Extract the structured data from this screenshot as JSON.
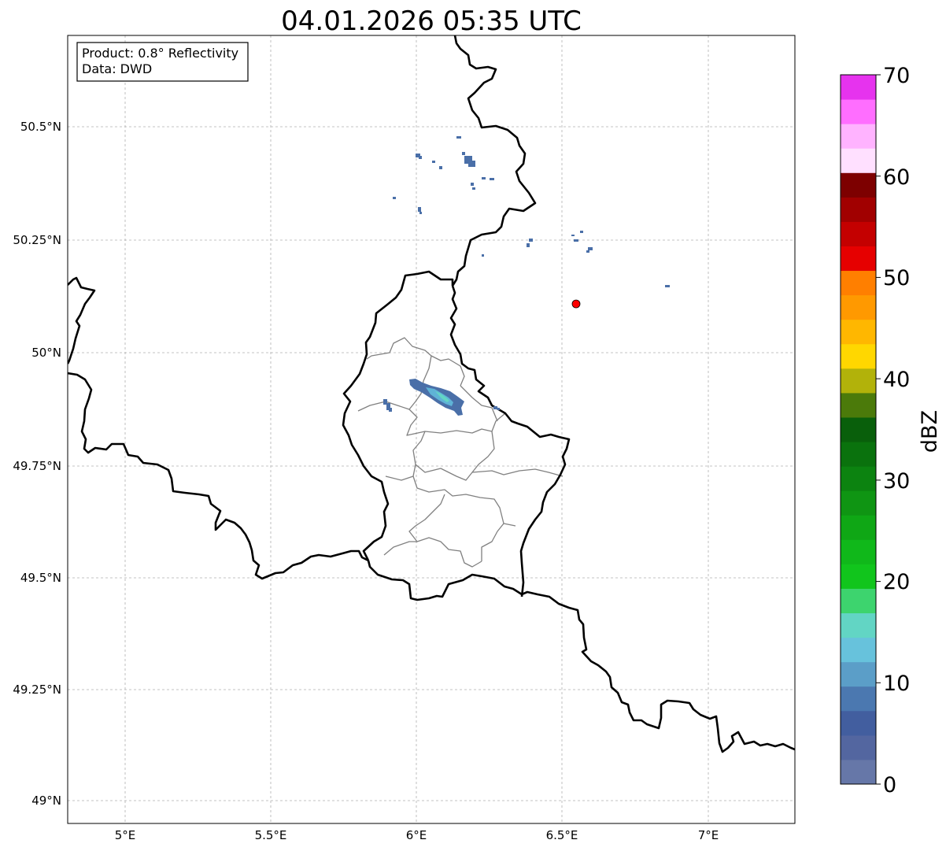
{
  "title": "04.01.2026 05:35 UTC",
  "info_box": {
    "product": "Product: 0.8° Reflectivity",
    "data": "Data: DWD"
  },
  "axes": {
    "lon_ticks": [
      "5°E",
      "5.5°E",
      "6°E",
      "6.5°E",
      "7°E"
    ],
    "lat_ticks": [
      "50.5°N",
      "50.25°N",
      "50°N",
      "49.75°N",
      "49.5°N",
      "49.25°N",
      "49°N"
    ]
  },
  "colorbar": {
    "label": "dBZ",
    "ticks": [
      "0",
      "10",
      "20",
      "30",
      "40",
      "50",
      "60",
      "70"
    ],
    "colors": [
      "#6677a8",
      "#5366a0",
      "#425e9f",
      "#4b78b0",
      "#5b9ec8",
      "#67c2dc",
      "#62d5c4",
      "#3dd46e",
      "#11c51c",
      "#10b81a",
      "#0fa715",
      "#0f9513",
      "#0c8310",
      "#0a720d",
      "#095f0b",
      "#4b7a0a",
      "#b2b20a",
      "#ffd700",
      "#ffb700",
      "#ff9900",
      "#ff7f00",
      "#e60000",
      "#c40000",
      "#a10000",
      "#7d0000",
      "#ffe0ff",
      "#ffb3ff",
      "#ff6eff",
      "#e633ee"
    ]
  },
  "marker": {
    "label": "radar-site",
    "color": "#ff0000"
  },
  "chart_data": {
    "type": "heatmap",
    "title": "04.01.2026 05:35 UTC",
    "xlabel": "",
    "ylabel": "",
    "xlim": [
      4.8,
      7.3
    ],
    "ylim": [
      48.95,
      50.7
    ],
    "value_range": [
      0,
      70
    ],
    "unit": "dBZ",
    "marker_location": {
      "lon": 6.55,
      "lat": 50.11
    }
  }
}
